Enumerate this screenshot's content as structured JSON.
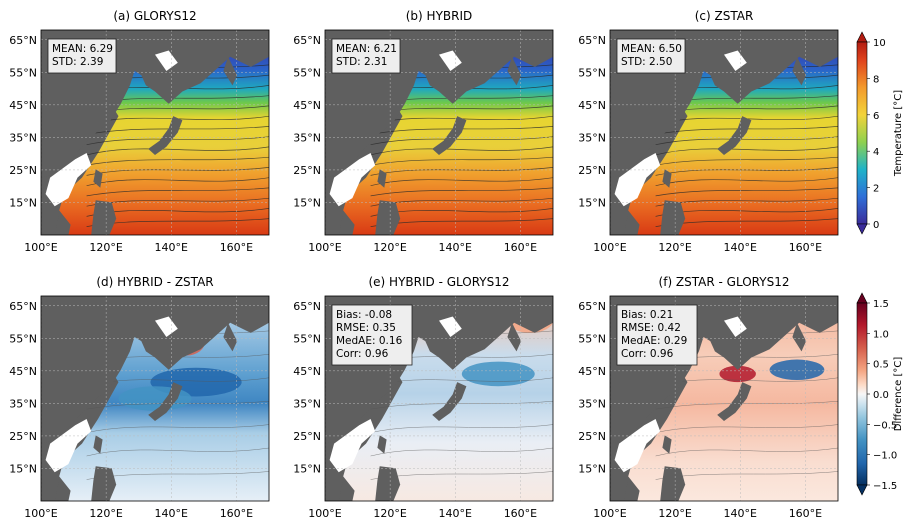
{
  "chart_data": [
    {
      "type": "heatmap",
      "title": "(a) GLORYS12",
      "stats": [
        "MEAN: 6.29",
        "STD: 2.39"
      ],
      "xticks": [
        "100°E",
        "120°E",
        "140°E",
        "160°E"
      ],
      "yticks": [
        "65°N",
        "55°N",
        "45°N",
        "35°N",
        "25°N",
        "15°N"
      ],
      "xlim": [
        100,
        170
      ],
      "ylim": [
        5,
        68
      ]
    },
    {
      "type": "heatmap",
      "title": "(b) HYBRID",
      "stats": [
        "MEAN: 6.21",
        "STD: 2.31"
      ],
      "xticks": [
        "100°E",
        "120°E",
        "140°E",
        "160°E"
      ],
      "yticks": [
        "65°N",
        "55°N",
        "45°N",
        "35°N",
        "25°N",
        "15°N"
      ],
      "xlim": [
        100,
        170
      ],
      "ylim": [
        5,
        68
      ]
    },
    {
      "type": "heatmap",
      "title": "(c) ZSTAR",
      "stats": [
        "MEAN: 6.50",
        "STD: 2.50"
      ],
      "xticks": [
        "100°E",
        "120°E",
        "140°E",
        "160°E"
      ],
      "yticks": [
        "65°N",
        "55°N",
        "45°N",
        "35°N",
        "25°N",
        "15°N"
      ],
      "xlim": [
        100,
        170
      ],
      "ylim": [
        5,
        68
      ]
    },
    {
      "type": "heatmap",
      "title": "(d) HYBRID - ZSTAR",
      "stats": [],
      "xticks": [
        "100°E",
        "120°E",
        "140°E",
        "160°E"
      ],
      "yticks": [
        "65°N",
        "55°N",
        "45°N",
        "35°N",
        "25°N",
        "15°N"
      ],
      "xlim": [
        100,
        170
      ],
      "ylim": [
        5,
        68
      ]
    },
    {
      "type": "heatmap",
      "title": "(e) HYBRID - GLORYS12",
      "stats": [
        "Bias: -0.08",
        "RMSE: 0.35",
        "MedAE: 0.16",
        "Corr: 0.96"
      ],
      "xticks": [
        "100°E",
        "120°E",
        "140°E",
        "160°E"
      ],
      "yticks": [
        "65°N",
        "55°N",
        "45°N",
        "35°N",
        "25°N",
        "15°N"
      ],
      "xlim": [
        100,
        170
      ],
      "ylim": [
        5,
        68
      ]
    },
    {
      "type": "heatmap",
      "title": "(f) ZSTAR - GLORYS12",
      "stats": [
        "Bias: 0.21",
        "RMSE: 0.42",
        "MedAE: 0.29",
        "Corr: 0.96"
      ],
      "xticks": [
        "100°E",
        "120°E",
        "140°E",
        "160°E"
      ],
      "yticks": [
        "65°N",
        "55°N",
        "45°N",
        "35°N",
        "25°N",
        "15°N"
      ],
      "xlim": [
        100,
        170
      ],
      "ylim": [
        5,
        68
      ]
    }
  ],
  "colorbars": {
    "temperature": {
      "label": "Temperature [°C]",
      "range": [
        0,
        10
      ],
      "ticks": [
        "0",
        "2",
        "4",
        "6",
        "8",
        "10"
      ],
      "colors": [
        "#3a2c9a",
        "#2f6fd8",
        "#1fb3c8",
        "#8fd14f",
        "#f2d33a",
        "#f39a2c",
        "#e0431d",
        "#b21c12"
      ]
    },
    "difference": {
      "label": "Difference [°C]",
      "range": [
        -1.5,
        1.5
      ],
      "ticks": [
        "-1.5",
        "-1.0",
        "-0.5",
        "0.0",
        "0.5",
        "1.0",
        "1.5"
      ],
      "colors": [
        "#053061",
        "#2166ac",
        "#4393c3",
        "#92c5de",
        "#d1e5f0",
        "#f7f7f7",
        "#fddbc7",
        "#f4a582",
        "#d6604d",
        "#b2182b",
        "#67001f"
      ]
    }
  }
}
